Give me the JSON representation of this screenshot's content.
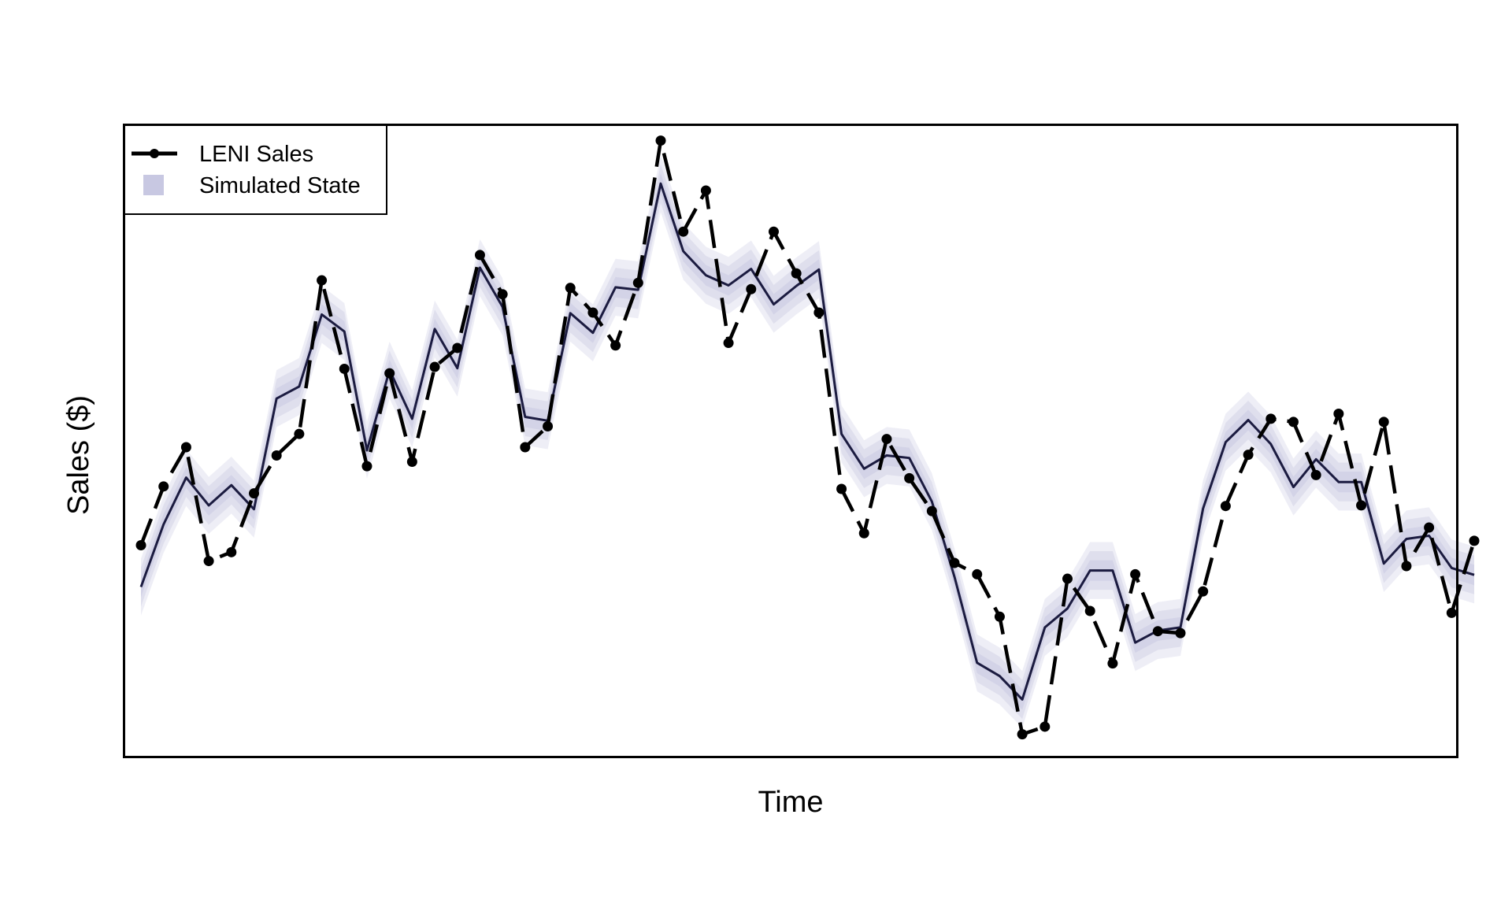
{
  "chart_data": {
    "type": "line",
    "title": "",
    "xlabel": "Time",
    "ylabel": "Sales ($)",
    "xlim": [
      0.25,
      59.25
    ],
    "ylim": [
      0,
      1
    ],
    "grid": false,
    "legend_position": "top-left",
    "x_ticks_shown": false,
    "y_ticks_shown": false,
    "colors": {
      "series": "#000000",
      "state_line": "#1b1b40",
      "band": "#c8c8e2"
    },
    "legend": [
      {
        "label": "LENI Sales",
        "kind": "line-with-points"
      },
      {
        "label": "Simulated State",
        "kind": "shaded-band"
      }
    ],
    "series": [
      {
        "name": "LENI Sales",
        "style": "dashed-line-with-points",
        "values": [
          0.335,
          0.428,
          0.49,
          0.31,
          0.324,
          0.417,
          0.477,
          0.511,
          0.754,
          0.614,
          0.46,
          0.607,
          0.467,
          0.617,
          0.647,
          0.794,
          0.732,
          0.49,
          0.523,
          0.742,
          0.703,
          0.651,
          0.75,
          0.975,
          0.831,
          0.896,
          0.655,
          0.74,
          0.831,
          0.765,
          0.703,
          0.424,
          0.354,
          0.503,
          0.441,
          0.389,
          0.307,
          0.289,
          0.222,
          0.036,
          0.048,
          0.282,
          0.231,
          0.148,
          0.289,
          0.199,
          0.196,
          0.262,
          0.397,
          0.478,
          0.535,
          0.53,
          0.446,
          0.543,
          0.398,
          0.53,
          0.302,
          0.363,
          0.228,
          0.342
        ]
      },
      {
        "name": "Simulated State",
        "style": "line-with-band",
        "values": [
          0.269,
          0.368,
          0.442,
          0.398,
          0.43,
          0.392,
          0.567,
          0.586,
          0.7,
          0.673,
          0.485,
          0.612,
          0.535,
          0.677,
          0.615,
          0.774,
          0.712,
          0.538,
          0.532,
          0.702,
          0.671,
          0.743,
          0.739,
          0.907,
          0.8,
          0.762,
          0.746,
          0.772,
          0.716,
          0.745,
          0.771,
          0.511,
          0.456,
          0.477,
          0.473,
          0.404,
          0.285,
          0.149,
          0.128,
          0.091,
          0.205,
          0.235,
          0.295,
          0.295,
          0.181,
          0.2,
          0.205,
          0.393,
          0.498,
          0.533,
          0.495,
          0.427,
          0.471,
          0.435,
          0.435,
          0.306,
          0.345,
          0.35,
          0.299,
          0.288
        ],
        "band_halfwidth": 0.045
      }
    ]
  }
}
